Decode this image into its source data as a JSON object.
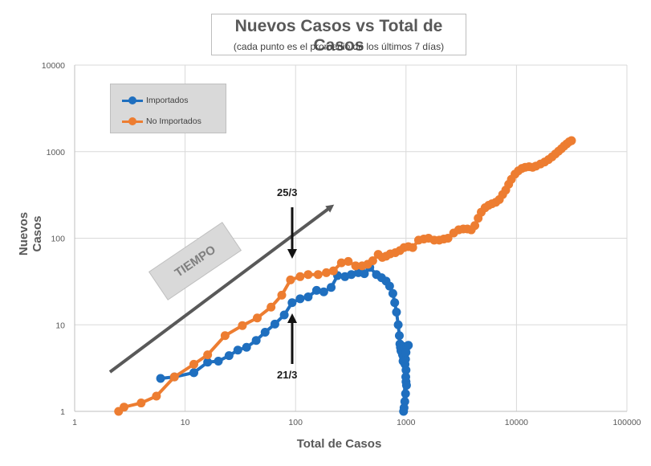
{
  "chart_data": {
    "type": "line",
    "title": "Nuevos Casos vs Total de Casos",
    "subtitle": "(cada punto es el promedio de los últimos 7 días)",
    "xlabel": "Total de Casos",
    "ylabel": "Nuevos Casos",
    "xscale": "log",
    "yscale": "log",
    "xlim": [
      1,
      100000
    ],
    "ylim": [
      1,
      10000
    ],
    "x_ticks": [
      "1",
      "10",
      "100",
      "1000",
      "10000",
      "100000"
    ],
    "y_ticks": [
      "1",
      "10",
      "100",
      "1000",
      "10000"
    ],
    "grid": true,
    "legend_position": "top-left",
    "series": [
      {
        "name": "Importados",
        "color": "#1f6fbf",
        "points": [
          [
            6,
            2.4
          ],
          [
            8,
            2.5
          ],
          [
            12,
            2.8
          ],
          [
            16,
            3.7
          ],
          [
            20,
            3.8
          ],
          [
            25,
            4.4
          ],
          [
            30,
            5.1
          ],
          [
            36,
            5.5
          ],
          [
            44,
            6.6
          ],
          [
            53,
            8.2
          ],
          [
            65,
            10.2
          ],
          [
            79,
            13
          ],
          [
            93,
            18
          ],
          [
            110,
            20
          ],
          [
            130,
            21
          ],
          [
            155,
            25
          ],
          [
            180,
            24
          ],
          [
            210,
            27
          ],
          [
            240,
            37
          ],
          [
            280,
            36
          ],
          [
            320,
            38
          ],
          [
            370,
            40
          ],
          [
            420,
            39
          ],
          [
            470,
            46
          ],
          [
            540,
            38
          ],
          [
            600,
            35
          ],
          [
            660,
            32
          ],
          [
            710,
            28
          ],
          [
            760,
            23
          ],
          [
            790,
            18
          ],
          [
            820,
            14
          ],
          [
            850,
            10
          ],
          [
            870,
            7.5
          ],
          [
            880,
            6
          ],
          [
            890,
            5.5
          ],
          [
            900,
            5
          ],
          [
            910,
            5.5
          ],
          [
            920,
            4.8
          ],
          [
            930,
            4.5
          ],
          [
            940,
            3.8
          ],
          [
            950,
            4.2
          ],
          [
            955,
            5.6
          ],
          [
            965,
            5.6
          ],
          [
            980,
            3.5
          ],
          [
            990,
            4
          ],
          [
            1000,
            3
          ],
          [
            995,
            2.5
          ],
          [
            1000,
            2.2
          ],
          [
            1010,
            2
          ],
          [
            990,
            1.6
          ],
          [
            975,
            1.3
          ],
          [
            960,
            1.1
          ],
          [
            950,
            1
          ],
          [
            1020,
            5.6
          ],
          [
            1050,
            5.8
          ],
          [
            1000,
            4.8
          ]
        ]
      },
      {
        "name": "No Importados",
        "color": "#ed7d31",
        "points": [
          [
            2.5,
            1
          ],
          [
            2.8,
            1.12
          ],
          [
            4,
            1.25
          ],
          [
            5.5,
            1.5
          ],
          [
            8,
            2.5
          ],
          [
            12,
            3.5
          ],
          [
            16,
            4.5
          ],
          [
            23,
            7.5
          ],
          [
            33,
            9.8
          ],
          [
            45,
            12
          ],
          [
            60,
            16
          ],
          [
            75,
            22
          ],
          [
            90,
            33
          ],
          [
            110,
            36
          ],
          [
            130,
            38
          ],
          [
            160,
            38
          ],
          [
            190,
            40
          ],
          [
            220,
            42
          ],
          [
            260,
            52
          ],
          [
            300,
            54
          ],
          [
            350,
            48
          ],
          [
            400,
            48
          ],
          [
            450,
            50
          ],
          [
            500,
            55
          ],
          [
            560,
            65
          ],
          [
            610,
            60
          ],
          [
            660,
            62
          ],
          [
            720,
            66
          ],
          [
            800,
            68
          ],
          [
            880,
            72
          ],
          [
            960,
            78
          ],
          [
            1050,
            80
          ],
          [
            1150,
            78
          ],
          [
            1300,
            95
          ],
          [
            1450,
            98
          ],
          [
            1600,
            100
          ],
          [
            1800,
            95
          ],
          [
            2000,
            95
          ],
          [
            2200,
            98
          ],
          [
            2400,
            100
          ],
          [
            2700,
            115
          ],
          [
            3000,
            125
          ],
          [
            3300,
            128
          ],
          [
            3600,
            128
          ],
          [
            3900,
            125
          ],
          [
            4200,
            140
          ],
          [
            4500,
            170
          ],
          [
            4800,
            200
          ],
          [
            5200,
            225
          ],
          [
            5600,
            240
          ],
          [
            6000,
            250
          ],
          [
            6500,
            260
          ],
          [
            7000,
            280
          ],
          [
            7500,
            320
          ],
          [
            8000,
            360
          ],
          [
            8500,
            420
          ],
          [
            9000,
            480
          ],
          [
            9700,
            550
          ],
          [
            10400,
            600
          ],
          [
            11200,
            640
          ],
          [
            12000,
            660
          ],
          [
            13000,
            670
          ],
          [
            14000,
            660
          ],
          [
            15000,
            680
          ],
          [
            16500,
            720
          ],
          [
            18000,
            760
          ],
          [
            19500,
            810
          ],
          [
            21000,
            870
          ],
          [
            22500,
            940
          ],
          [
            24000,
            1010
          ],
          [
            25500,
            1080
          ],
          [
            27000,
            1160
          ],
          [
            28500,
            1230
          ],
          [
            30000,
            1300
          ],
          [
            31500,
            1340
          ]
        ]
      }
    ],
    "annotations": [
      {
        "text": "TIEMPO"
      },
      {
        "text": "25/3"
      },
      {
        "text": "21/3"
      }
    ]
  }
}
